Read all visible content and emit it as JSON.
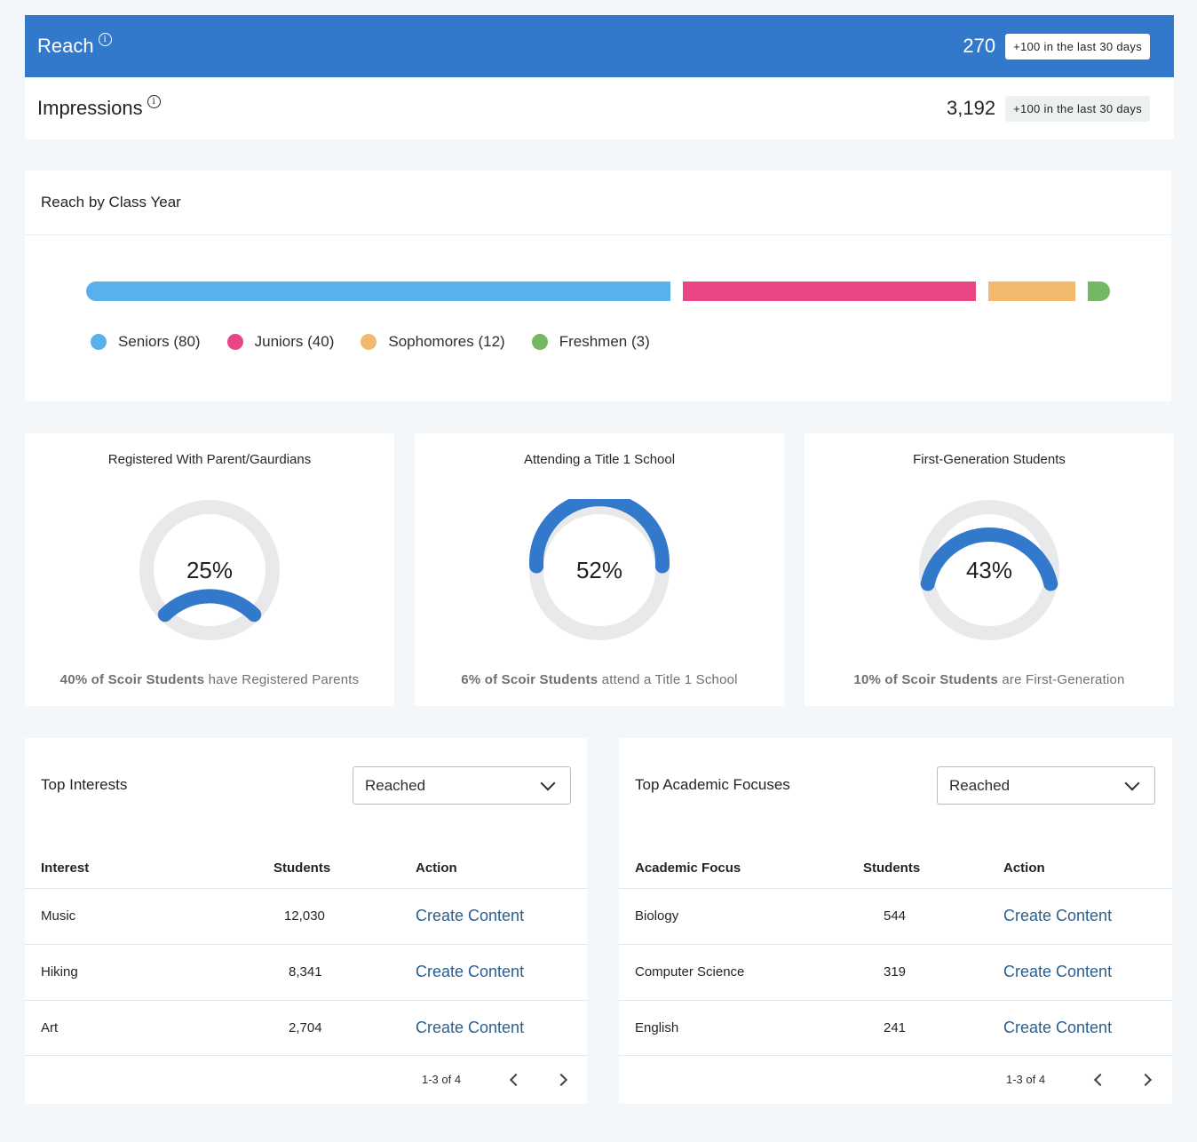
{
  "reach": {
    "title": "Reach",
    "info_icon": "info-icon",
    "value": "270",
    "delta": "+100 in the last 30 days",
    "color": "#3279cb"
  },
  "impressions": {
    "title": "Impressions",
    "info_icon": "info-icon",
    "value": "3,192",
    "delta": "+100 in the last 30 days"
  },
  "class_year": {
    "title": "Reach by Class Year",
    "segments": [
      {
        "label": "Seniors (80)",
        "value": 80,
        "color": "#5ab0ec"
      },
      {
        "label": "Juniors (40)",
        "value": 40,
        "color": "#ea4685"
      },
      {
        "label": "Sophomores (12)",
        "value": 12,
        "color": "#f3b96f"
      },
      {
        "label": "Freshmen (3)",
        "value": 3,
        "color": "#74b865"
      }
    ]
  },
  "stats": [
    {
      "title": "Registered With Parent/Gaurdians",
      "percent": 25,
      "percent_label": "25%",
      "foot_bold": "40% of Scoir Students",
      "foot_rest": " have Registered Parents"
    },
    {
      "title": "Attending a Title 1 School",
      "percent": 52,
      "percent_label": "52%",
      "foot_bold": "6% of Scoir Students",
      "foot_rest": " attend a Title 1 School"
    },
    {
      "title": "First-Generation Students",
      "percent": 43,
      "percent_label": "43%",
      "foot_bold": "10% of Scoir Students",
      "foot_rest": " are First-Generation"
    }
  ],
  "interests": {
    "title": "Top Interests",
    "dropdown_value": "Reached",
    "columns": [
      "Interest",
      "Students",
      "Action"
    ],
    "rows": [
      {
        "name": "Music",
        "students": "12,030",
        "action": "Create Content"
      },
      {
        "name": "Hiking",
        "students": "8,341",
        "action": "Create Content"
      },
      {
        "name": "Art",
        "students": "2,704",
        "action": "Create Content"
      }
    ],
    "pager": "1-3 of 4"
  },
  "academics": {
    "title": "Top Academic Focuses",
    "dropdown_value": "Reached",
    "columns": [
      "Academic Focus",
      "Students",
      "Action"
    ],
    "rows": [
      {
        "name": "Biology",
        "students": "544",
        "action": "Create Content"
      },
      {
        "name": "Computer Science",
        "students": "319",
        "action": "Create Content"
      },
      {
        "name": "English",
        "students": "241",
        "action": "Create Content"
      }
    ],
    "pager": "1-3 of 4"
  },
  "colors": {
    "accent": "#3279cb",
    "link": "#2a5f8f",
    "ring_track": "#e8e9eb"
  }
}
